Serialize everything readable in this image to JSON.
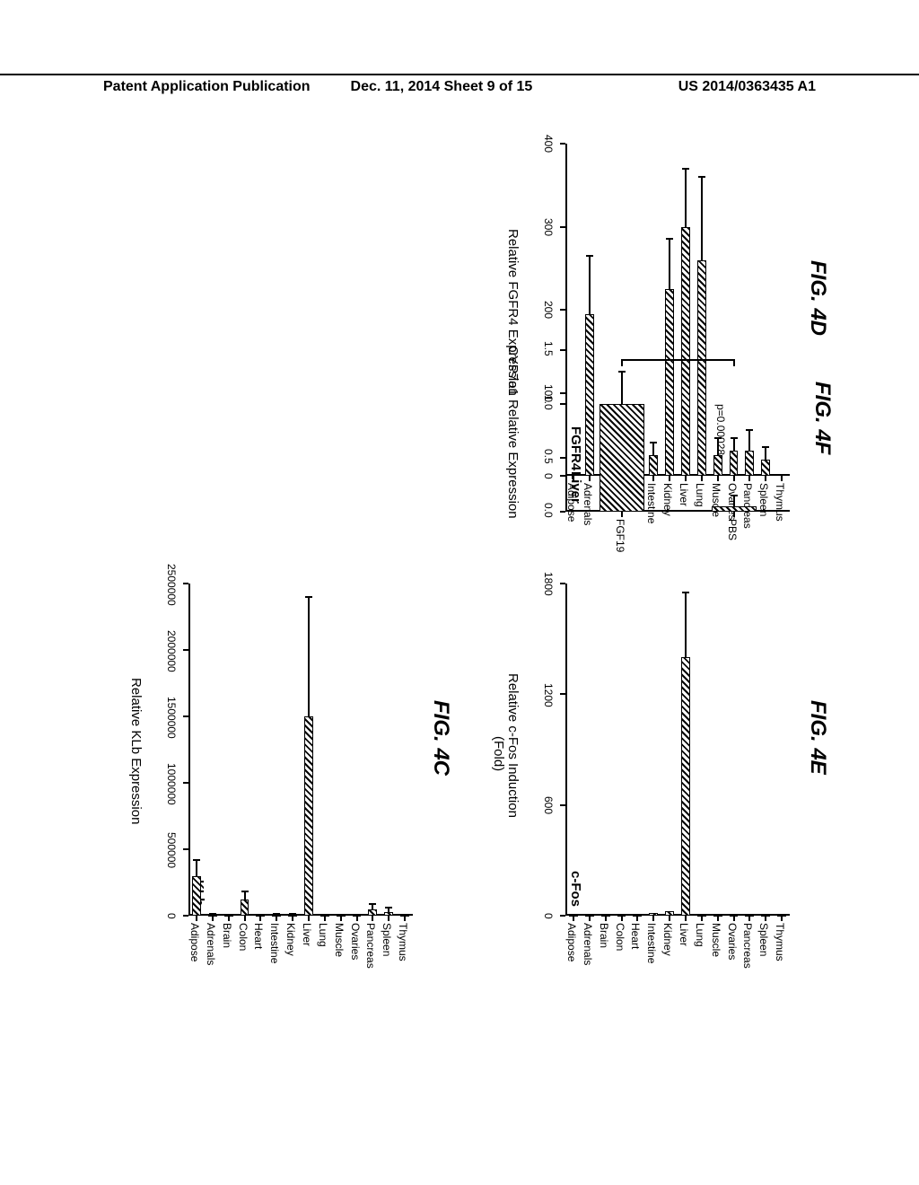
{
  "header": {
    "left": "Patent Application Publication",
    "mid": "Dec. 11, 2014  Sheet 9 of 15",
    "right": "US 2014/0363435 A1"
  },
  "tissues": [
    "Adipose",
    "Adrenals",
    "Brain",
    "Colon",
    "Heart",
    "Intestine",
    "Kidney",
    "Liver",
    "Lung",
    "Muscle",
    "Ovaries",
    "Pancreas",
    "Spleen",
    "Thymus"
  ],
  "panel4C": {
    "title": "KLb",
    "fig": "FIG. 4C",
    "axis_label": "Relative KLb Expression",
    "ymax": 2500000,
    "ticks": [
      0,
      500000,
      1000000,
      1500000,
      2000000,
      2500000
    ],
    "values": {
      "Adipose": {
        "v": 300000,
        "e": 120000
      },
      "Adrenals": {
        "v": 8000,
        "e": 4000
      },
      "Brain": {
        "v": 2000,
        "e": 0
      },
      "Colon": {
        "v": 120000,
        "e": 60000
      },
      "Heart": {
        "v": 2000,
        "e": 0
      },
      "Intestine": {
        "v": 10000,
        "e": 4000
      },
      "Kidney": {
        "v": 8000,
        "e": 3000
      },
      "Liver": {
        "v": 1500000,
        "e": 900000
      },
      "Lung": {
        "v": 6000,
        "e": 2000
      },
      "Muscle": {
        "v": 2000,
        "e": 0
      },
      "Ovaries": {
        "v": 2000,
        "e": 0
      },
      "Pancreas": {
        "v": 50000,
        "e": 40000
      },
      "Spleen": {
        "v": 30000,
        "e": 30000
      },
      "Thymus": {
        "v": 2000,
        "e": 0
      }
    }
  },
  "panel4D": {
    "title": "FGFR4",
    "fig": "FIG. 4D",
    "axis_label": "Relative FGFR4 Expression",
    "ymax": 400,
    "ticks": [
      0,
      100,
      200,
      300,
      400
    ],
    "values": {
      "Adipose": {
        "v": 2,
        "e": 0
      },
      "Adrenals": {
        "v": 195,
        "e": 70
      },
      "Brain": {
        "v": 2,
        "e": 0
      },
      "Colon": {
        "v": 55,
        "e": 30
      },
      "Heart": {
        "v": 2,
        "e": 0
      },
      "Intestine": {
        "v": 25,
        "e": 15
      },
      "Kidney": {
        "v": 225,
        "e": 60
      },
      "Liver": {
        "v": 300,
        "e": 70
      },
      "Lung": {
        "v": 260,
        "e": 100
      },
      "Muscle": {
        "v": 25,
        "e": 20
      },
      "Ovaries": {
        "v": 30,
        "e": 15
      },
      "Pancreas": {
        "v": 30,
        "e": 25
      },
      "Spleen": {
        "v": 20,
        "e": 15
      },
      "Thymus": {
        "v": 2,
        "e": 0
      }
    }
  },
  "panel4E": {
    "title": "c-Fos",
    "fig": "FIG. 4E",
    "axis_label": "Relative c-Fos Induction",
    "axis_label2": "(Fold)",
    "ymax": 1800,
    "ticks": [
      0,
      600,
      1200,
      1800
    ],
    "values": {
      "Adipose": {
        "v": 5,
        "e": 0
      },
      "Adrenals": {
        "v": 5,
        "e": 0
      },
      "Brain": {
        "v": 5,
        "e": 0
      },
      "Colon": {
        "v": 5,
        "e": 0
      },
      "Heart": {
        "v": 5,
        "e": 0
      },
      "Intestine": {
        "v": 15,
        "e": 0
      },
      "Kidney": {
        "v": 25,
        "e": 0
      },
      "Liver": {
        "v": 1400,
        "e": 350
      },
      "Lung": {
        "v": 5,
        "e": 0
      },
      "Muscle": {
        "v": 5,
        "e": 0
      },
      "Ovaries": {
        "v": 5,
        "e": 0
      },
      "Pancreas": {
        "v": 5,
        "e": 0
      },
      "Spleen": {
        "v": 5,
        "e": 0
      },
      "Thymus": {
        "v": 5,
        "e": 0
      }
    }
  },
  "panel4F": {
    "title": "Liver",
    "fig": "FIG. 4F",
    "axis_label": "CYP7a1 Relative Expression",
    "ymax": 1.5,
    "ticks": [
      "0.0",
      "0.5",
      "1.0",
      "1.5"
    ],
    "tick_vals": [
      0.0,
      0.5,
      1.0,
      1.5
    ],
    "categories": [
      "FGF19",
      "PBS"
    ],
    "p_text": "p=0.00028",
    "values": {
      "FGF19": {
        "v": 1.0,
        "e": 0.3
      },
      "PBS": {
        "v": 0.05,
        "e": 0.1
      }
    }
  }
}
